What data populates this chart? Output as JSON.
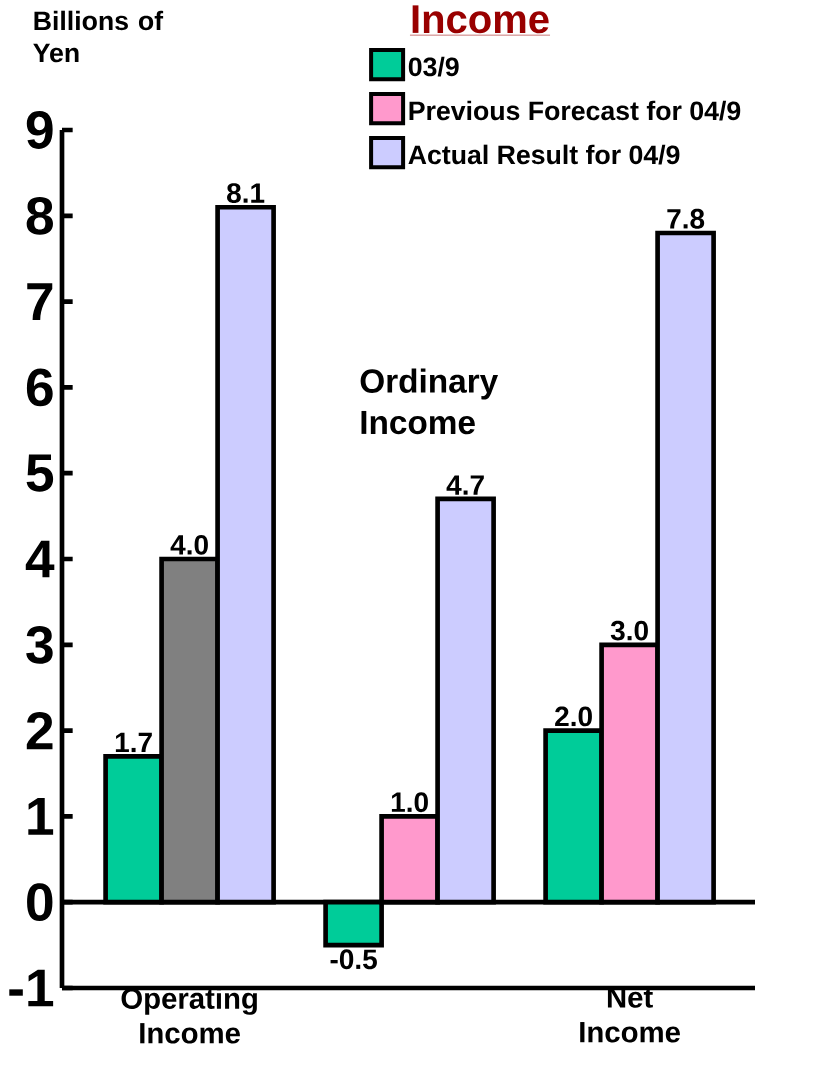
{
  "chart_data": {
    "type": "bar",
    "title": "Income",
    "ylabel": "Billions of Yen",
    "categories": [
      "Operating Income",
      "Ordinary Income",
      "Net Income"
    ],
    "series": [
      {
        "name": "03/9",
        "color": "#00cc99",
        "values": [
          1.7,
          -0.5,
          2.0
        ],
        "value_labels": [
          "1.7",
          "-0.5",
          "2.0"
        ]
      },
      {
        "name": "Previous Forecast for 04/9",
        "color": "#ff99cc",
        "colors": [
          "#808080",
          "#ff99cc",
          "#ff99cc"
        ],
        "values": [
          4.0,
          1.0,
          3.0
        ],
        "value_labels": [
          "4.0",
          "1.0",
          "3.0"
        ]
      },
      {
        "name": "Actual Result for 04/9",
        "color": "#ccccff",
        "values": [
          8.1,
          4.7,
          7.8
        ],
        "value_labels": [
          "8.1",
          "4.7",
          "7.8"
        ]
      }
    ],
    "ylim": [
      -1,
      9
    ],
    "yticks": [
      -1,
      0,
      1,
      2,
      3,
      4,
      5,
      6,
      7,
      8,
      9
    ],
    "legend": "top right"
  }
}
